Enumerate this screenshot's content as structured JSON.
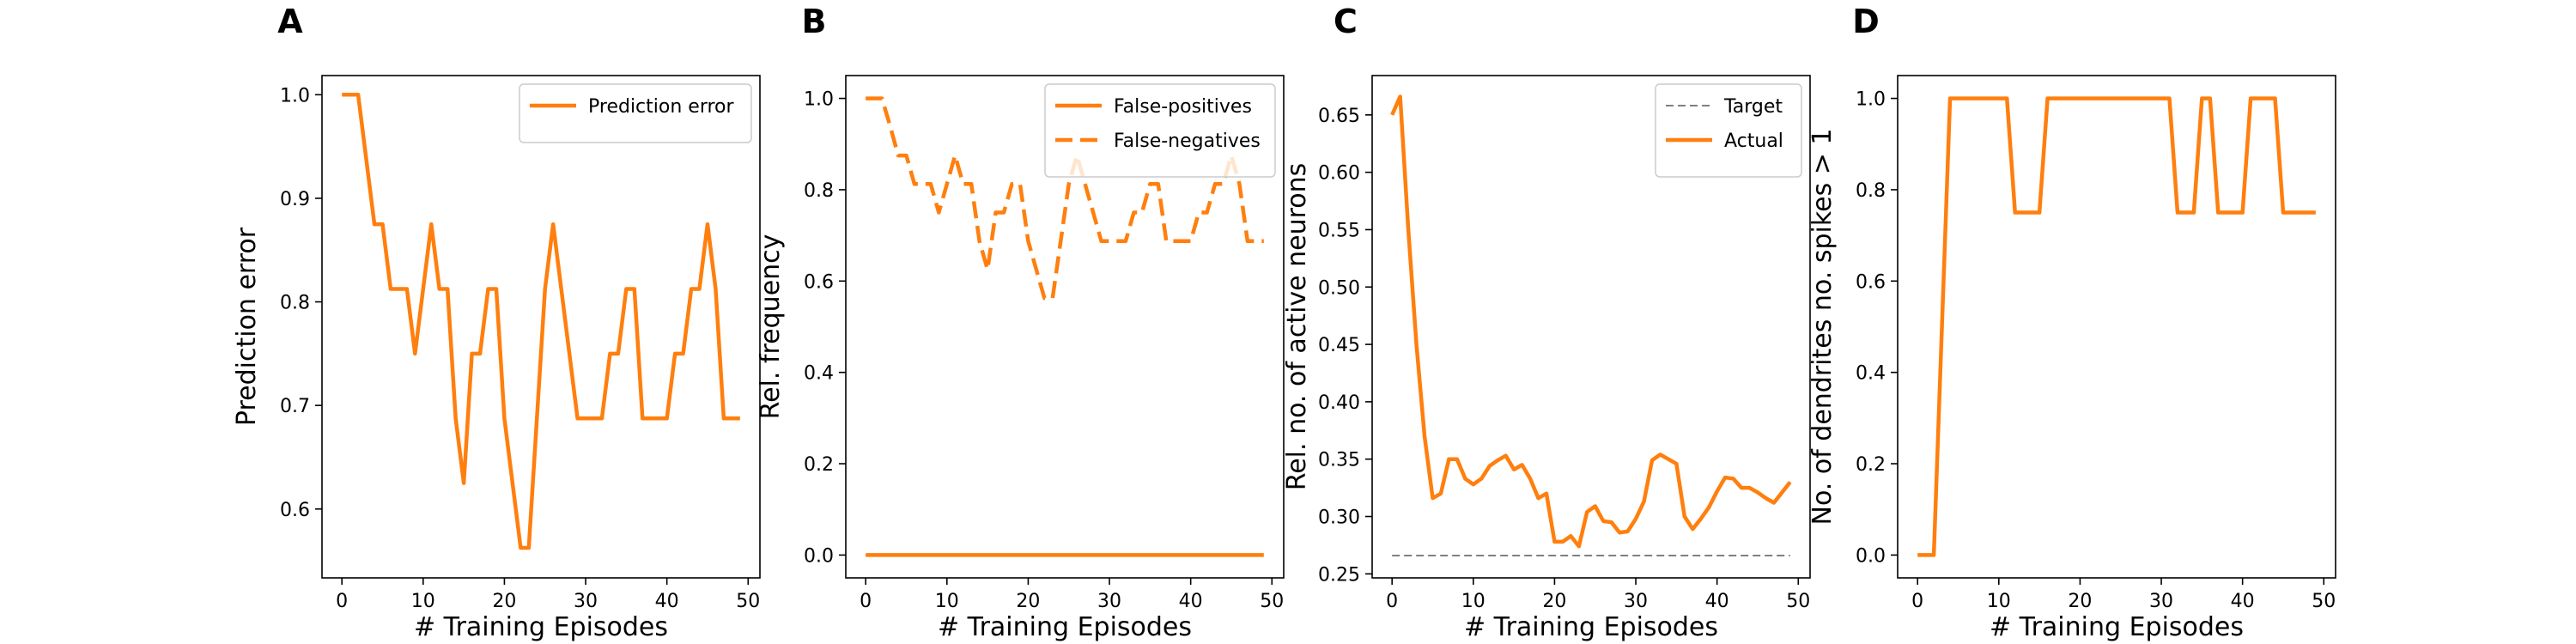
{
  "figure": {
    "panel_letters": [
      "A",
      "B",
      "C",
      "D"
    ],
    "line_color": "#ff7f0e",
    "target_color": "#808080"
  },
  "chart_data": [
    {
      "type": "line",
      "panel": "A",
      "xlabel": "# Training Episodes",
      "ylabel": "Prediction error",
      "xlim": [
        -2.45,
        51.45
      ],
      "ylim": [
        0.5335,
        1.0185
      ],
      "xticks": [
        0,
        10,
        20,
        30,
        40,
        50
      ],
      "yticks": [
        0.6,
        0.7,
        0.8,
        0.9,
        1.0
      ],
      "ytick_labels": [
        "0.6",
        "0.7",
        "0.8",
        "0.9",
        "1.0"
      ],
      "legend": "top-right",
      "series": [
        {
          "name": "Prediction error",
          "style": "solid",
          "x": [
            0,
            1,
            2,
            3,
            4,
            5,
            6,
            7,
            8,
            9,
            10,
            11,
            12,
            13,
            14,
            15,
            16,
            17,
            18,
            19,
            20,
            21,
            22,
            23,
            24,
            25,
            26,
            27,
            28,
            29,
            30,
            31,
            32,
            33,
            34,
            35,
            36,
            37,
            38,
            39,
            40,
            41,
            42,
            43,
            44,
            45,
            46,
            47,
            48,
            49
          ],
          "values": [
            1.0,
            1.0,
            1.0,
            0.9375,
            0.875,
            0.875,
            0.8125,
            0.8125,
            0.8125,
            0.75,
            0.8125,
            0.875,
            0.8125,
            0.8125,
            0.6875,
            0.625,
            0.75,
            0.75,
            0.8125,
            0.8125,
            0.6875,
            0.625,
            0.5625,
            0.5625,
            0.6875,
            0.8125,
            0.875,
            0.8125,
            0.75,
            0.6875,
            0.6875,
            0.6875,
            0.6875,
            0.75,
            0.75,
            0.8125,
            0.8125,
            0.6875,
            0.6875,
            0.6875,
            0.6875,
            0.75,
            0.75,
            0.8125,
            0.8125,
            0.875,
            0.8125,
            0.6875,
            0.6875,
            0.6875
          ]
        }
      ]
    },
    {
      "type": "line",
      "panel": "B",
      "xlabel": "# Training Episodes",
      "ylabel": "Rel. frequency",
      "xlim": [
        -2.45,
        51.45
      ],
      "ylim": [
        -0.05,
        1.05
      ],
      "xticks": [
        0,
        10,
        20,
        30,
        40,
        50
      ],
      "yticks": [
        0.0,
        0.2,
        0.4,
        0.6,
        0.8,
        1.0
      ],
      "ytick_labels": [
        "0.0",
        "0.2",
        "0.4",
        "0.6",
        "0.8",
        "1.0"
      ],
      "legend": "top-right",
      "series": [
        {
          "name": "False-positives",
          "style": "solid",
          "x": [
            0,
            49
          ],
          "values": [
            0.0,
            0.0
          ]
        },
        {
          "name": "False-negatives",
          "style": "dashed",
          "x": [
            0,
            1,
            2,
            3,
            4,
            5,
            6,
            7,
            8,
            9,
            10,
            11,
            12,
            13,
            14,
            15,
            16,
            17,
            18,
            19,
            20,
            21,
            22,
            23,
            24,
            25,
            26,
            27,
            28,
            29,
            30,
            31,
            32,
            33,
            34,
            35,
            36,
            37,
            38,
            39,
            40,
            41,
            42,
            43,
            44,
            45,
            46,
            47,
            48,
            49
          ],
          "values": [
            1.0,
            1.0,
            1.0,
            0.94,
            0.875,
            0.875,
            0.8125,
            0.8125,
            0.8125,
            0.75,
            0.8125,
            0.875,
            0.8125,
            0.8125,
            0.6875,
            0.625,
            0.75,
            0.75,
            0.8125,
            0.8125,
            0.6875,
            0.625,
            0.5625,
            0.5625,
            0.6875,
            0.8125,
            0.875,
            0.8125,
            0.75,
            0.6875,
            0.6875,
            0.6875,
            0.6875,
            0.75,
            0.75,
            0.8125,
            0.8125,
            0.6875,
            0.6875,
            0.6875,
            0.6875,
            0.75,
            0.75,
            0.8125,
            0.8125,
            0.875,
            0.8125,
            0.6875,
            0.6875,
            0.6875
          ]
        }
      ]
    },
    {
      "type": "line",
      "panel": "C",
      "xlabel": "# Training Episodes",
      "ylabel": "Rel. no. of active neurons",
      "xlim": [
        -2.45,
        51.45
      ],
      "ylim": [
        0.2465,
        0.6843
      ],
      "xticks": [
        0,
        10,
        20,
        30,
        40,
        50
      ],
      "yticks": [
        0.25,
        0.3,
        0.35,
        0.4,
        0.45,
        0.5,
        0.55,
        0.6,
        0.65
      ],
      "ytick_labels": [
        "0.25",
        "0.30",
        "0.35",
        "0.40",
        "0.45",
        "0.50",
        "0.55",
        "0.60",
        "0.65"
      ],
      "legend": "top-right",
      "series": [
        {
          "name": "Target",
          "style": "dashed",
          "x": [
            0,
            49
          ],
          "values": [
            0.266,
            0.266
          ]
        },
        {
          "name": "Actual",
          "style": "solid",
          "x": [
            0,
            1,
            2,
            3,
            4,
            5,
            6,
            7,
            8,
            9,
            10,
            11,
            12,
            13,
            14,
            15,
            16,
            17,
            18,
            19,
            20,
            21,
            22,
            23,
            24,
            25,
            26,
            27,
            28,
            29,
            30,
            31,
            32,
            33,
            34,
            35,
            36,
            37,
            38,
            39,
            40,
            41,
            42,
            43,
            44,
            45,
            46,
            47,
            48,
            49
          ],
          "values": [
            0.65,
            0.666,
            0.55,
            0.45,
            0.37,
            0.316,
            0.32,
            0.35,
            0.35,
            0.333,
            0.328,
            0.333,
            0.344,
            0.349,
            0.353,
            0.341,
            0.345,
            0.333,
            0.316,
            0.32,
            0.278,
            0.278,
            0.283,
            0.274,
            0.304,
            0.309,
            0.296,
            0.295,
            0.286,
            0.287,
            0.298,
            0.313,
            0.349,
            0.354,
            0.35,
            0.346,
            0.3,
            0.289,
            0.298,
            0.308,
            0.322,
            0.334,
            0.333,
            0.325,
            0.325,
            0.321,
            0.316,
            0.312,
            0.321,
            0.33
          ]
        }
      ]
    },
    {
      "type": "line",
      "panel": "D",
      "xlabel": "# Training Episodes",
      "ylabel": "No. of dendrites no. spikes > 1",
      "xlim": [
        -2.45,
        51.45
      ],
      "ylim": [
        -0.05,
        1.05
      ],
      "xticks": [
        0,
        10,
        20,
        30,
        40,
        50
      ],
      "yticks": [
        0.0,
        0.2,
        0.4,
        0.6,
        0.8,
        1.0
      ],
      "ytick_labels": [
        "0.0",
        "0.2",
        "0.4",
        "0.6",
        "0.8",
        "1.0"
      ],
      "legend": "none",
      "series": [
        {
          "name": "",
          "style": "solid",
          "x": [
            0,
            1,
            2,
            3,
            4,
            5,
            6,
            7,
            8,
            9,
            10,
            11,
            12,
            13,
            14,
            15,
            16,
            17,
            18,
            19,
            20,
            21,
            22,
            23,
            24,
            25,
            26,
            27,
            28,
            29,
            30,
            31,
            32,
            33,
            34,
            35,
            36,
            37,
            38,
            39,
            40,
            41,
            42,
            43,
            44,
            45,
            46,
            47,
            48,
            49
          ],
          "values": [
            0,
            0,
            0,
            0.5,
            1,
            1,
            1,
            1,
            1,
            1,
            1,
            1,
            0.75,
            0.75,
            0.75,
            0.75,
            1,
            1,
            1,
            1,
            1,
            1,
            1,
            1,
            1,
            1,
            1,
            1,
            1,
            1,
            1,
            1,
            0.75,
            0.75,
            0.75,
            1,
            1,
            0.75,
            0.75,
            0.75,
            0.75,
            1,
            1,
            1,
            1,
            0.75,
            0.75,
            0.75,
            0.75,
            0.75
          ]
        }
      ]
    }
  ]
}
